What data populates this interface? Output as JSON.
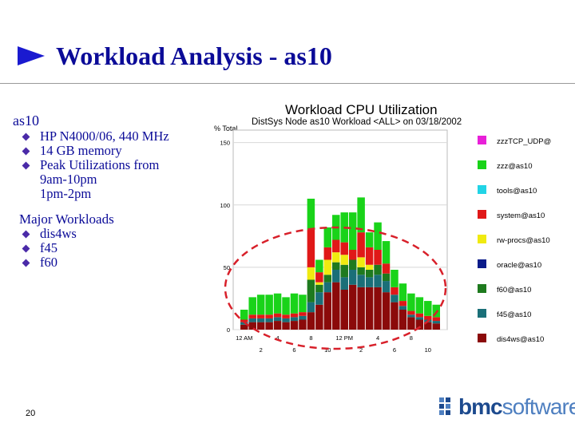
{
  "slide": {
    "title": "Workload Analysis - as10",
    "page_number": "20"
  },
  "left": {
    "heading": "as10",
    "bullets": [
      "HP N4000/06, 440 MHz",
      "14 GB memory",
      "Peak Utilizations from"
    ],
    "peak_lines": [
      "9am-10pm",
      "1pm-2pm"
    ],
    "workloads_heading": "Major Workloads",
    "workloads": [
      "dis4ws",
      "f45",
      "f60"
    ]
  },
  "logo": {
    "part1": "bmc",
    "part2": "software"
  },
  "colors": {
    "title": "#0b0b98",
    "arrow": "#1a1ad0",
    "bullet": "#4a2aa8",
    "ellipse": "#d8202a"
  },
  "chart_data": {
    "type": "bar",
    "title": "Workload CPU Utilization",
    "subtitle": "DistSys Node as10 Workload <ALL> on 03/18/2002",
    "ylabel": "% Total",
    "ylim": [
      0,
      160
    ],
    "yticks": [
      "0",
      "50",
      "100",
      "150"
    ],
    "xticks_top": [
      "12 AM",
      "4",
      "8",
      "12 PM",
      "4",
      "8"
    ],
    "xticks_bottom": [
      "2",
      "6",
      "10",
      "2",
      "6",
      "10"
    ],
    "grid": true,
    "legend_position": "right",
    "x": [
      0,
      1,
      2,
      3,
      4,
      5,
      6,
      7,
      8,
      9,
      10,
      11,
      12,
      13,
      14,
      15,
      16,
      17,
      18,
      19,
      20,
      21,
      22,
      23
    ],
    "series": [
      {
        "name": "dis4ws@as10",
        "color": "#8b0a0a",
        "values": [
          4,
          6,
          6,
          6,
          7,
          6,
          7,
          8,
          14,
          20,
          30,
          38,
          32,
          36,
          34,
          34,
          34,
          30,
          22,
          16,
          10,
          8,
          6,
          5
        ]
      },
      {
        "name": "f45@as10",
        "color": "#1a6f78",
        "values": [
          2,
          3,
          3,
          3,
          3,
          3,
          3,
          3,
          8,
          10,
          8,
          10,
          10,
          12,
          10,
          8,
          10,
          9,
          6,
          3,
          2,
          2,
          2,
          2
        ]
      },
      {
        "name": "f60@as10",
        "color": "#1e7a1e",
        "values": [
          0,
          0,
          0,
          0,
          0,
          0,
          0,
          0,
          18,
          6,
          6,
          6,
          10,
          8,
          6,
          6,
          8,
          6,
          0,
          0,
          0,
          0,
          0,
          0
        ]
      },
      {
        "name": "oracle@as10",
        "color": "#0b1b8a",
        "values": [
          0,
          0,
          0,
          0,
          0,
          0,
          0,
          0,
          0,
          0,
          0,
          0,
          0,
          0,
          0,
          0,
          0,
          0,
          0,
          0,
          0,
          0,
          0,
          0
        ]
      },
      {
        "name": "rw-procs@as10",
        "color": "#f0ea10",
        "values": [
          0,
          0,
          0,
          0,
          0,
          0,
          0,
          0,
          10,
          2,
          12,
          8,
          8,
          0,
          8,
          4,
          0,
          0,
          0,
          0,
          0,
          0,
          0,
          0
        ]
      },
      {
        "name": "system@as10",
        "color": "#e01818",
        "values": [
          2,
          3,
          3,
          3,
          3,
          3,
          3,
          3,
          30,
          8,
          10,
          10,
          10,
          8,
          20,
          14,
          12,
          8,
          6,
          4,
          3,
          3,
          3,
          3
        ]
      },
      {
        "name": "tools@as10",
        "color": "#22d4e6",
        "values": [
          0,
          0,
          0,
          0,
          0,
          0,
          0,
          0,
          0,
          0,
          0,
          0,
          0,
          0,
          0,
          0,
          0,
          0,
          0,
          0,
          0,
          0,
          0,
          0
        ]
      },
      {
        "name": "zzz@as10",
        "color": "#19d319",
        "values": [
          8,
          14,
          16,
          16,
          16,
          14,
          16,
          14,
          25,
          10,
          16,
          20,
          24,
          30,
          28,
          12,
          22,
          18,
          14,
          14,
          14,
          13,
          12,
          10
        ]
      },
      {
        "name": "zzzTCP_UDP@",
        "color": "#e820d8",
        "values": [
          0,
          0,
          0,
          0,
          0,
          0,
          0,
          0,
          0,
          0,
          0,
          0,
          0,
          0,
          0,
          0,
          0,
          0,
          0,
          0,
          0,
          0,
          0,
          0
        ]
      }
    ]
  }
}
